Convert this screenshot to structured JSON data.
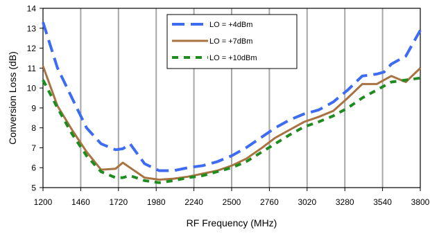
{
  "chart_data": {
    "type": "line",
    "xlabel": "RF Frequency (MHz)",
    "ylabel": "Conversion Loss (dB)",
    "xlim": [
      1200,
      3800
    ],
    "ylim": [
      5,
      14
    ],
    "xticks": [
      1200,
      1460,
      1720,
      1980,
      2240,
      2500,
      2760,
      3020,
      3280,
      3540,
      3800
    ],
    "yticks": [
      5,
      6,
      7,
      8,
      9,
      10,
      11,
      12,
      13,
      14
    ],
    "grid": "vertical",
    "legend_position": "top-center",
    "series": [
      {
        "name": "LO = +4dBm",
        "color": "#3d6cf2",
        "style": "long-dash",
        "x": [
          1200,
          1300,
          1400,
          1500,
          1600,
          1700,
          1750,
          1800,
          1900,
          2000,
          2100,
          2200,
          2300,
          2400,
          2500,
          2600,
          2700,
          2800,
          2900,
          3000,
          3100,
          3200,
          3300,
          3400,
          3500,
          3550,
          3600,
          3700,
          3800
        ],
        "y": [
          13.3,
          11.0,
          9.5,
          8.0,
          7.2,
          6.9,
          6.95,
          7.2,
          6.2,
          5.85,
          5.85,
          6.0,
          6.1,
          6.3,
          6.6,
          7.0,
          7.5,
          8.0,
          8.4,
          8.7,
          8.9,
          9.3,
          9.9,
          10.6,
          10.7,
          10.8,
          11.2,
          11.6,
          12.9
        ]
      },
      {
        "name": "LO = +7dBm",
        "color": "#a87340",
        "style": "solid",
        "x": [
          1200,
          1300,
          1400,
          1500,
          1600,
          1700,
          1750,
          1800,
          1900,
          2000,
          2100,
          2200,
          2300,
          2400,
          2500,
          2600,
          2700,
          2800,
          2900,
          3000,
          3100,
          3200,
          3300,
          3400,
          3500,
          3550,
          3600,
          3700,
          3800
        ],
        "y": [
          11.1,
          9.1,
          7.9,
          6.8,
          5.9,
          5.95,
          6.25,
          6.0,
          5.5,
          5.4,
          5.45,
          5.55,
          5.7,
          5.85,
          6.1,
          6.45,
          6.95,
          7.5,
          7.9,
          8.3,
          8.55,
          8.85,
          9.5,
          10.2,
          10.2,
          10.4,
          10.6,
          10.3,
          11.0
        ]
      },
      {
        "name": "LO = +10dBm",
        "color": "#1f8c1f",
        "style": "short-dash",
        "x": [
          1200,
          1300,
          1400,
          1500,
          1600,
          1700,
          1750,
          1800,
          1900,
          2000,
          2100,
          2200,
          2300,
          2400,
          2500,
          2600,
          2700,
          2800,
          2900,
          3000,
          3100,
          3200,
          3300,
          3400,
          3500,
          3550,
          3600,
          3700,
          3800
        ],
        "y": [
          10.4,
          9.0,
          7.7,
          6.6,
          5.8,
          5.5,
          5.5,
          5.6,
          5.35,
          5.25,
          5.35,
          5.5,
          5.6,
          5.8,
          6.0,
          6.3,
          6.75,
          7.2,
          7.65,
          8.05,
          8.3,
          8.6,
          9.0,
          9.5,
          9.9,
          10.1,
          10.3,
          10.4,
          10.5
        ]
      }
    ]
  }
}
